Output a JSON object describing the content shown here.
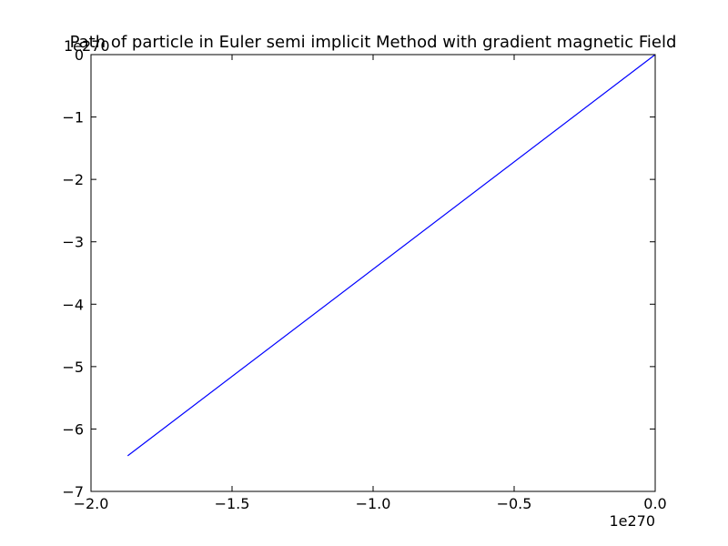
{
  "chart_data": {
    "type": "line",
    "title": "Path of particle in Euler semi implicit Method with gradient magnetic Field",
    "xlabel": "",
    "ylabel": "",
    "x_offset_text": "1e270",
    "y_offset_text": "1e270",
    "xlim": [
      -2.0,
      0.0
    ],
    "ylim": [
      -7,
      0
    ],
    "x_ticks": [
      -2.0,
      -1.5,
      -1.0,
      -0.5,
      0.0
    ],
    "x_tick_labels": [
      "−2.0",
      "−1.5",
      "−1.0",
      "−0.5",
      "0.0"
    ],
    "y_ticks": [
      0,
      -1,
      -2,
      -3,
      -4,
      -5,
      -6,
      -7
    ],
    "y_tick_labels": [
      "0",
      "−1",
      "−2",
      "−3",
      "−4",
      "−5",
      "−6",
      "−7"
    ],
    "grid": false,
    "series": [
      {
        "color": "#0000ff",
        "x": [
          0.0,
          -1.87
        ],
        "y": [
          0.0,
          -6.43
        ]
      }
    ]
  }
}
